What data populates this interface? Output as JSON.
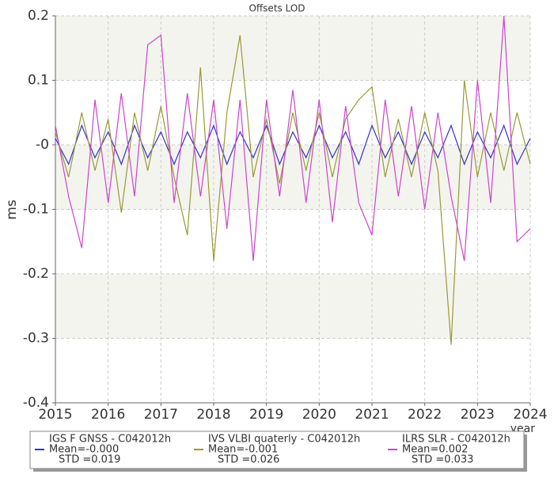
{
  "chart_data": {
    "type": "line",
    "title": "Offsets LOD",
    "x_label": "year",
    "y_label": "ms",
    "x": [
      2015,
      2015.25,
      2015.5,
      2015.75,
      2016,
      2016.25,
      2016.5,
      2016.75,
      2017,
      2017.25,
      2017.5,
      2017.75,
      2018,
      2018.25,
      2018.5,
      2018.75,
      2019,
      2019.25,
      2019.5,
      2019.75,
      2020,
      2020.25,
      2020.5,
      2020.75,
      2021,
      2021.25,
      2021.5,
      2021.75,
      2022,
      2022.25,
      2022.5,
      2022.75,
      2023,
      2023.25,
      2023.5,
      2023.75,
      2024
    ],
    "series": [
      {
        "name": "IGS F GNSS - C042012h",
        "mean_label": "Mean=-0.000",
        "std_label": "STD =0.019",
        "color": "#3333cc",
        "values": [
          0.01,
          -0.03,
          0.03,
          -0.02,
          0.02,
          -0.03,
          0.03,
          -0.02,
          0.02,
          -0.03,
          0.02,
          -0.02,
          0.03,
          -0.03,
          0.02,
          -0.02,
          0.03,
          -0.03,
          0.02,
          -0.02,
          0.03,
          -0.02,
          0.02,
          -0.03,
          0.03,
          -0.02,
          0.02,
          -0.03,
          0.02,
          -0.02,
          0.03,
          -0.03,
          0.02,
          -0.02,
          0.03,
          -0.03,
          0.01
        ]
      },
      {
        "name": "IVS VLBI quaterly - C042012h",
        "mean_label": "Mean=-0.001",
        "std_label": "STD =0.026",
        "color": "#999933",
        "values": [
          0.02,
          -0.05,
          0.05,
          -0.04,
          0.04,
          -0.105,
          0.05,
          -0.04,
          0.06,
          -0.05,
          -0.14,
          0.12,
          -0.18,
          0.05,
          0.17,
          -0.05,
          0.04,
          -0.06,
          0.05,
          -0.04,
          0.05,
          -0.05,
          0.04,
          0.07,
          0.09,
          -0.05,
          0.04,
          -0.05,
          0.05,
          -0.04,
          -0.31,
          0.1,
          -0.05,
          0.05,
          -0.04,
          0.05,
          -0.03
        ]
      },
      {
        "name": "ILRS SLR - C042012h",
        "mean_label": "Mean=0.002",
        "std_label": "STD =0.033",
        "color": "#cc44cc",
        "values": [
          0.03,
          -0.08,
          -0.16,
          0.07,
          -0.09,
          0.08,
          -0.08,
          0.155,
          0.17,
          -0.09,
          0.08,
          -0.08,
          0.07,
          -0.13,
          0.07,
          -0.18,
          0.07,
          -0.08,
          0.085,
          -0.09,
          0.07,
          -0.12,
          0.06,
          -0.09,
          -0.14,
          0.07,
          -0.08,
          0.06,
          -0.1,
          0.05,
          -0.08,
          -0.18,
          0.1,
          -0.09,
          0.2,
          -0.15,
          -0.13
        ]
      }
    ],
    "xlim": [
      2015,
      2024
    ],
    "xticks": [
      2015,
      2016,
      2017,
      2018,
      2019,
      2020,
      2021,
      2022,
      2023,
      2024
    ],
    "ylim": [
      -0.4,
      0.2
    ],
    "yticks": [
      0.2,
      0.1,
      {
        "value": 0,
        "label": "-0"
      },
      -0.1,
      -0.2,
      -0.3,
      -0.4
    ],
    "grid": true
  }
}
